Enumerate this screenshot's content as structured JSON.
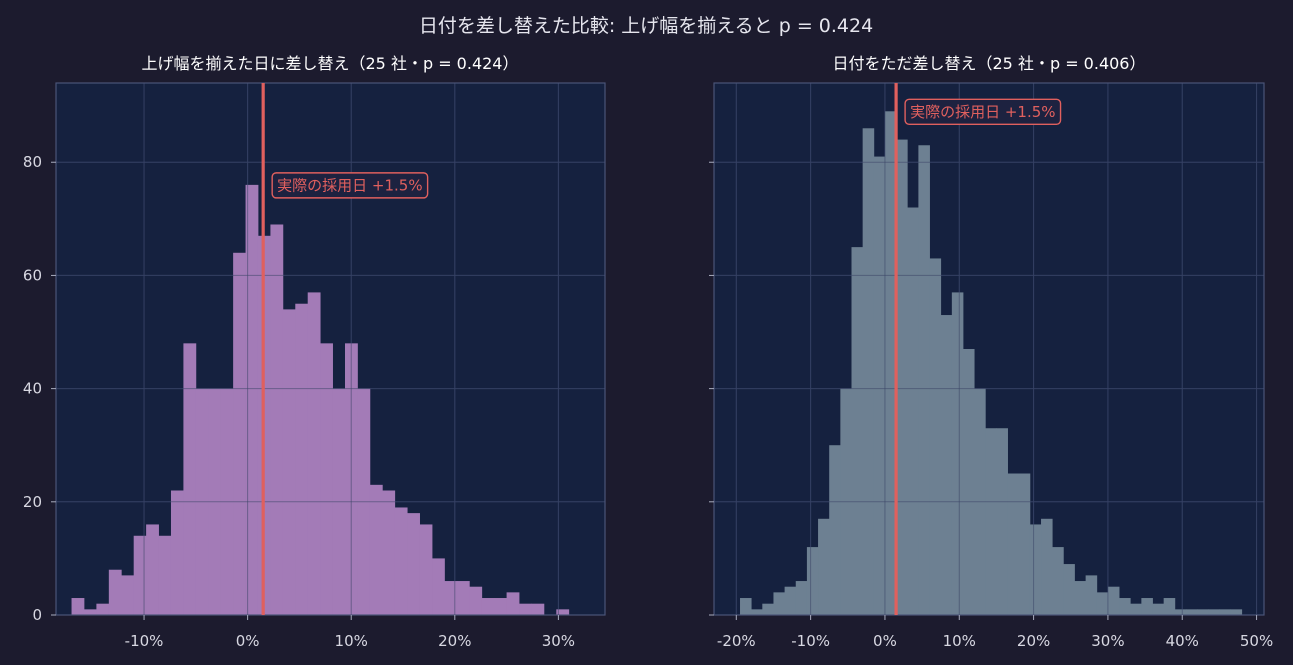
{
  "figure": {
    "title": "日付を差し替えた比較: 上げ幅を揃えると p = 0.424"
  },
  "colors": {
    "background": "#1c1b2e",
    "plot_background": "#15213f",
    "left_bars": "#a37bb7",
    "right_bars": "#6d8092",
    "actual_line": "#e0605e"
  },
  "chart_data": [
    {
      "type": "bar",
      "title": "上げ幅を揃えた日に差し替え（25 社・p = 0.424）",
      "xlabel": "",
      "ylabel": "",
      "xlim": [
        -18.5,
        34.5
      ],
      "ylim": [
        0,
        94
      ],
      "x_ticks": [
        -10,
        0,
        10,
        20,
        30
      ],
      "x_tick_labels": [
        "-10%",
        "0%",
        "10%",
        "20%",
        "30%"
      ],
      "y_ticks": [
        0,
        20,
        40,
        60,
        80
      ],
      "y_tick_labels": [
        "0",
        "20",
        "40",
        "60",
        "80"
      ],
      "grid": true,
      "bin_start": -17.0,
      "bin_width": 1.2,
      "values": [
        3,
        1,
        2,
        8,
        7,
        14,
        16,
        14,
        22,
        48,
        40,
        40,
        40,
        64,
        76,
        67,
        69,
        54,
        55,
        57,
        48,
        40,
        48,
        40,
        23,
        22,
        19,
        18,
        16,
        10,
        6,
        6,
        5,
        3,
        3,
        4,
        2,
        2,
        0,
        1
      ],
      "actual": {
        "x": 1.5,
        "label": "実際の採用日 +1.5%",
        "label_y": 76
      }
    },
    {
      "type": "bar",
      "title": "日付をただ差し替え（25 社・p = 0.406）",
      "xlabel": "",
      "ylabel": "",
      "xlim": [
        -23,
        51
      ],
      "ylim": [
        0,
        94
      ],
      "x_ticks": [
        -20,
        -10,
        0,
        10,
        20,
        30,
        40,
        50
      ],
      "x_tick_labels": [
        "-20%",
        "-10%",
        "0%",
        "10%",
        "20%",
        "30%",
        "40%",
        "50%"
      ],
      "y_ticks": [
        0,
        20,
        40,
        60,
        80
      ],
      "y_tick_labels": [
        "",
        "",
        "",
        "",
        ""
      ],
      "grid": true,
      "bin_start": -19.5,
      "bin_width": 1.5,
      "values": [
        3,
        1,
        2,
        4,
        5,
        6,
        12,
        17,
        30,
        40,
        65,
        86,
        81,
        89,
        84,
        72,
        83,
        63,
        53,
        57,
        47,
        40,
        33,
        33,
        25,
        25,
        16,
        17,
        12,
        9,
        6,
        7,
        4,
        5,
        3,
        2,
        3,
        2,
        3,
        1,
        1,
        1,
        1,
        1,
        1
      ],
      "actual": {
        "x": 1.5,
        "label": "実際の採用日 +1.5%",
        "label_y": 89
      }
    }
  ]
}
